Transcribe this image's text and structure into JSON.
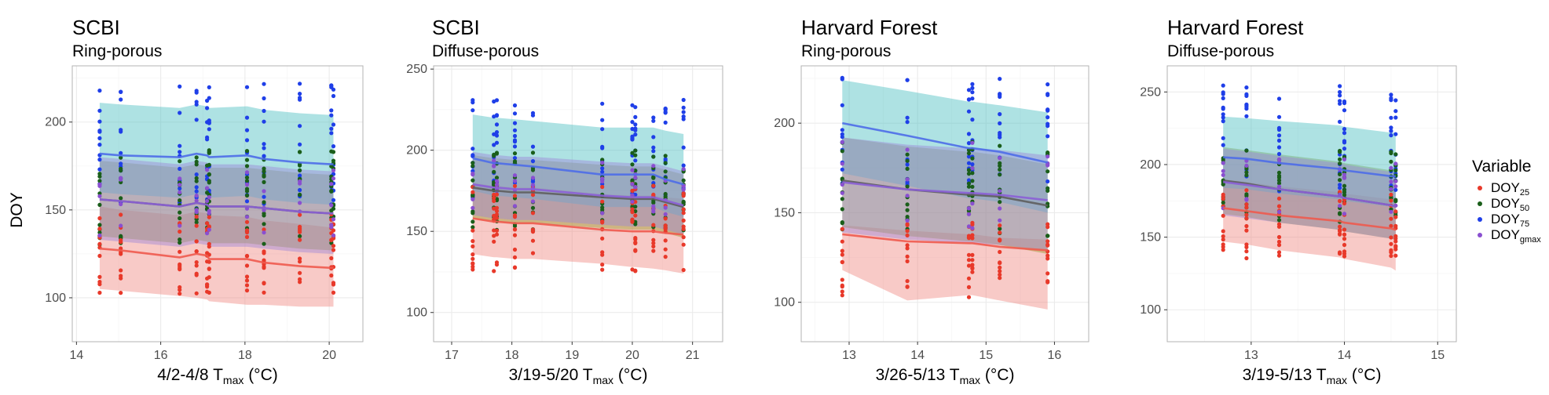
{
  "colors": {
    "DOY25": "#e8392a",
    "DOY50": "#1a5e1a",
    "DOY75": "#1f3fe8",
    "DOYgmax": "#8a4fd0",
    "band25": "#f08a82",
    "band50": "#9c9a2c",
    "band75": "#4cbfc2",
    "bandgmax": "#9e84d6",
    "line25": "#ee5a4e",
    "line50": "#5e5e5e",
    "line75": "#4e6de8",
    "linegmax": "#8b5fd6"
  },
  "y_axis_label": "DOY",
  "legend": {
    "title": "Variable",
    "items": [
      {
        "key": "DOY25",
        "base": "DOY",
        "sub": "25"
      },
      {
        "key": "DOY50",
        "base": "DOY",
        "sub": "50"
      },
      {
        "key": "DOY75",
        "base": "DOY",
        "sub": "75"
      },
      {
        "key": "DOYgmax",
        "base": "DOY",
        "sub": "gmax"
      }
    ]
  },
  "chart_data": [
    {
      "type": "scatter",
      "title": "SCBI",
      "subtitle": "Ring-porous",
      "xlabel_prefix": "4/2-4/8 T",
      "xlabel_sub": "max",
      "xlabel_suffix": " (°C)",
      "xlim": [
        13.9,
        20.8
      ],
      "ylim": [
        75,
        232
      ],
      "xticks": [
        14,
        16,
        18,
        20
      ],
      "yticks": [
        100,
        150,
        200
      ],
      "x": [
        14.55,
        15.05,
        16.45,
        16.85,
        17.1,
        17.15,
        18.05,
        18.45,
        19.3,
        20.05,
        20.1
      ],
      "series": [
        {
          "name": "DOY25",
          "line": [
            128,
            127,
            123,
            125,
            124,
            122,
            122,
            120,
            118,
            117,
            117
          ],
          "band_lo": [
            105,
            104,
            101,
            100,
            99,
            98,
            96,
            96,
            95,
            95,
            95
          ],
          "band_hi": [
            152,
            150,
            147,
            149,
            148,
            147,
            146,
            144,
            142,
            140,
            140
          ],
          "spread_lo": 102,
          "spread_hi": 148
        },
        {
          "name": "DOY50",
          "line": [
            156,
            155,
            152,
            154,
            153,
            152,
            152,
            151,
            149,
            148,
            148
          ],
          "band_lo": [
            135,
            134,
            131,
            133,
            132,
            131,
            131,
            130,
            128,
            127,
            127
          ],
          "band_hi": [
            178,
            177,
            174,
            176,
            175,
            174,
            174,
            173,
            171,
            170,
            170
          ],
          "spread_lo": 130,
          "spread_hi": 185
        },
        {
          "name": "DOY75",
          "line": [
            182,
            181,
            180,
            182,
            181,
            180,
            181,
            179,
            177,
            176,
            176
          ],
          "band_lo": [
            160,
            159,
            157,
            159,
            158,
            157,
            158,
            156,
            154,
            153,
            153
          ],
          "band_hi": [
            211,
            210,
            208,
            210,
            209,
            208,
            209,
            207,
            205,
            204,
            204
          ],
          "spread_lo": 150,
          "spread_hi": 222
        },
        {
          "name": "DOYgmax",
          "line": [
            156,
            155,
            152,
            154,
            153,
            152,
            152,
            151,
            149,
            148,
            148
          ],
          "band_lo": [
            133,
            132,
            129,
            131,
            130,
            129,
            129,
            128,
            126,
            125,
            125
          ],
          "band_hi": [
            180,
            179,
            176,
            178,
            177,
            176,
            176,
            175,
            173,
            172,
            172
          ],
          "spread_lo": 135,
          "spread_hi": 175
        }
      ]
    },
    {
      "type": "scatter",
      "title": "SCBI",
      "subtitle": "Diffuse-porous",
      "xlim": [
        16.7,
        21.5
      ],
      "ylim": [
        82,
        252
      ],
      "xticks": [
        17,
        18,
        19,
        20,
        21
      ],
      "yticks": [
        100,
        150,
        200,
        250
      ],
      "xlabel_prefix": "3/19-5/20 T",
      "xlabel_sub": "max",
      "xlabel_suffix": " (°C)",
      "x": [
        17.35,
        17.7,
        17.75,
        18.05,
        18.35,
        19.5,
        20.0,
        20.05,
        20.35,
        20.55,
        20.85
      ],
      "series": [
        {
          "name": "DOY25",
          "line": [
            158,
            156,
            156,
            155,
            155,
            151,
            150,
            150,
            150,
            149,
            148
          ],
          "band_lo": [
            136,
            134,
            134,
            133,
            133,
            130,
            128,
            128,
            127,
            126,
            124
          ],
          "band_hi": [
            180,
            178,
            178,
            177,
            177,
            173,
            172,
            172,
            172,
            171,
            170
          ],
          "spread_lo": 125,
          "spread_hi": 182
        },
        {
          "name": "DOY50",
          "line": [
            177,
            175,
            175,
            174,
            174,
            171,
            170,
            170,
            170,
            168,
            165
          ],
          "band_lo": [
            158,
            156,
            156,
            155,
            155,
            152,
            151,
            151,
            151,
            149,
            146
          ],
          "band_hi": [
            197,
            195,
            195,
            194,
            194,
            191,
            190,
            190,
            190,
            188,
            185
          ],
          "spread_lo": 150,
          "spread_hi": 200
        },
        {
          "name": "DOY75",
          "line": [
            195,
            192,
            192,
            191,
            190,
            185,
            185,
            185,
            185,
            182,
            179
          ],
          "band_lo": [
            175,
            172,
            172,
            171,
            170,
            165,
            165,
            165,
            165,
            162,
            159
          ],
          "band_hi": [
            222,
            220,
            220,
            219,
            218,
            214,
            214,
            214,
            214,
            212,
            210
          ],
          "spread_lo": 170,
          "spread_hi": 232
        },
        {
          "name": "DOYgmax",
          "line": [
            179,
            177,
            177,
            176,
            176,
            172,
            171,
            171,
            171,
            169,
            166
          ],
          "band_lo": [
            160,
            158,
            158,
            157,
            157,
            154,
            153,
            153,
            153,
            151,
            148
          ],
          "band_hi": [
            199,
            197,
            197,
            196,
            196,
            193,
            192,
            192,
            192,
            190,
            187
          ],
          "spread_lo": 160,
          "spread_hi": 195
        }
      ]
    },
    {
      "type": "scatter",
      "title": "Harvard Forest",
      "subtitle": "Ring-porous",
      "xlim": [
        12.3,
        16.5
      ],
      "ylim": [
        78,
        232
      ],
      "xticks": [
        13,
        14,
        15,
        16
      ],
      "yticks": [
        100,
        150,
        200
      ],
      "xlabel_prefix": "3/26-5/13 T",
      "xlabel_sub": "max",
      "xlabel_suffix": " (°C)",
      "x": [
        12.9,
        13.85,
        14.75,
        14.8,
        15.2,
        15.9
      ],
      "series": [
        {
          "name": "DOY25",
          "line": [
            138,
            134,
            133,
            133,
            131,
            129
          ],
          "band_lo": [
            118,
            101,
            104,
            104,
            101,
            96
          ],
          "band_hi": [
            143,
            140,
            138,
            138,
            136,
            135
          ],
          "spread_lo": 102,
          "spread_hi": 145
        },
        {
          "name": "DOY50",
          "line": [
            168,
            163,
            160,
            160,
            159,
            154
          ],
          "band_lo": [
            142,
            137,
            134,
            134,
            132,
            127
          ],
          "band_hi": [
            192,
            187,
            184,
            184,
            182,
            177
          ],
          "spread_lo": 135,
          "spread_hi": 195
        },
        {
          "name": "DOY75",
          "line": [
            200,
            193,
            186,
            186,
            184,
            178
          ],
          "band_lo": [
            172,
            165,
            158,
            158,
            156,
            150
          ],
          "band_hi": [
            224,
            218,
            212,
            212,
            210,
            206
          ],
          "spread_lo": 165,
          "spread_hi": 226
        },
        {
          "name": "DOYgmax",
          "line": [
            167,
            163,
            161,
            161,
            160,
            157
          ],
          "band_lo": [
            139,
            135,
            133,
            133,
            132,
            129
          ],
          "band_hi": [
            192,
            188,
            186,
            186,
            185,
            182
          ],
          "spread_lo": 140,
          "spread_hi": 190
        }
      ]
    },
    {
      "type": "scatter",
      "title": "Harvard Forest",
      "subtitle": "Diffuse-porous",
      "xlim": [
        12.1,
        15.2
      ],
      "ylim": [
        78,
        268
      ],
      "xticks": [
        13,
        14,
        15
      ],
      "yticks": [
        100,
        150,
        200,
        250
      ],
      "xlabel_prefix": "3/19-5/13 T",
      "xlabel_sub": "max",
      "xlabel_suffix": " (°C)",
      "x": [
        12.7,
        12.95,
        13.3,
        13.95,
        14.0,
        14.5,
        14.55
      ],
      "series": [
        {
          "name": "DOY25",
          "line": [
            170,
            168,
            165,
            161,
            160,
            156,
            155
          ],
          "band_lo": [
            147,
            145,
            141,
            136,
            135,
            129,
            127
          ],
          "band_hi": [
            190,
            188,
            185,
            181,
            180,
            176,
            175
          ],
          "spread_lo": 135,
          "spread_hi": 183
        },
        {
          "name": "DOY50",
          "line": [
            189,
            187,
            183,
            178,
            177,
            172,
            171
          ],
          "band_lo": [
            166,
            164,
            160,
            155,
            154,
            149,
            148
          ],
          "band_hi": [
            212,
            210,
            207,
            202,
            201,
            196,
            195
          ],
          "spread_lo": 160,
          "spread_hi": 210
        },
        {
          "name": "DOY75",
          "line": [
            205,
            204,
            201,
            197,
            196,
            192,
            192
          ],
          "band_lo": [
            184,
            183,
            180,
            176,
            175,
            171,
            171
          ],
          "band_hi": [
            233,
            232,
            230,
            227,
            226,
            222,
            222
          ],
          "spread_lo": 180,
          "spread_hi": 255
        },
        {
          "name": "DOYgmax",
          "line": [
            188,
            186,
            183,
            178,
            177,
            172,
            171
          ],
          "band_lo": [
            165,
            163,
            160,
            155,
            154,
            149,
            148
          ],
          "band_hi": [
            211,
            209,
            206,
            201,
            200,
            195,
            194
          ],
          "spread_lo": 165,
          "spread_hi": 205
        }
      ]
    }
  ]
}
